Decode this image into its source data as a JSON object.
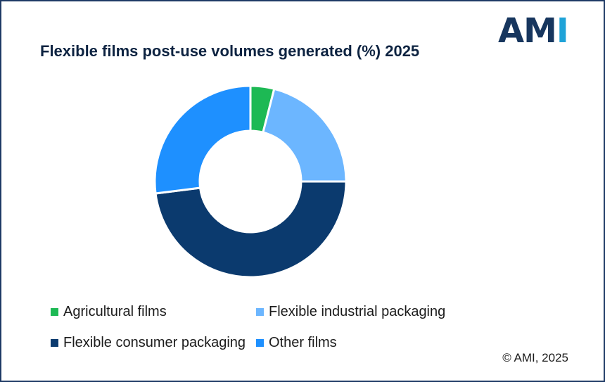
{
  "logo": {
    "letters_primary": "AM",
    "letters_accent": "I",
    "primary_color": "#17365e",
    "accent_color": "#1fa3d8"
  },
  "copyright": "© AMI, 2025",
  "chart_data": {
    "type": "pie",
    "donut": true,
    "title": "Flexible films post-use volumes generated (%) 2025",
    "legend_position": "bottom",
    "slices": [
      {
        "name": "Agricultural films",
        "value": 4,
        "color": "#1db954"
      },
      {
        "name": "Flexible industrial packaging",
        "value": 21,
        "color": "#6cb6ff"
      },
      {
        "name": "Flexible consumer packaging",
        "value": 48,
        "color": "#0b3a6e"
      },
      {
        "name": "Other films",
        "value": 27,
        "color": "#1e90ff"
      }
    ]
  }
}
